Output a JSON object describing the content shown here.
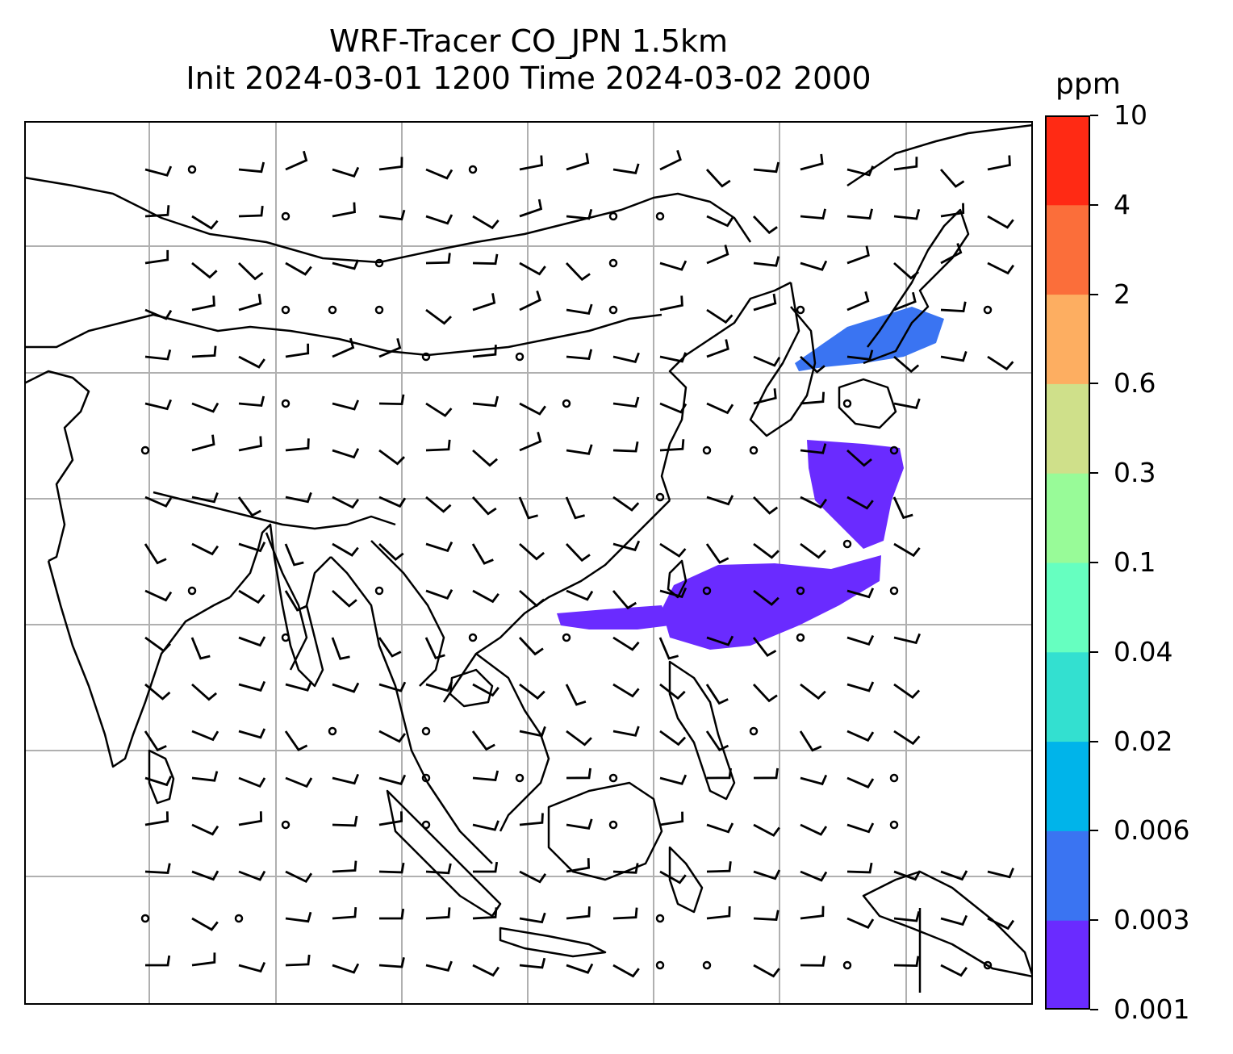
{
  "title": {
    "line1": "WRF-Tracer CO_JPN 1.5km",
    "line2": "Init 2024-03-01 1200 Time 2024-03-02 2000"
  },
  "colorbar": {
    "unit": "ppm",
    "levels": [
      "0.001",
      "0.003",
      "0.006",
      "0.02",
      "0.04",
      "0.1",
      "0.3",
      "0.6",
      "2",
      "4",
      "10"
    ],
    "colors": [
      "#6a2bff",
      "#3a74f2",
      "#00b4ea",
      "#33e0d0",
      "#66ffc0",
      "#98fb98",
      "#cfe08a",
      "#fdae61",
      "#fb6e3a",
      "#ff2a14"
    ]
  },
  "map": {
    "gridlines": true,
    "coastline_color": "#000000",
    "grid_color": "#b0b0b0",
    "plume_color": "#6a2bff",
    "plume_edge_color": "#3a74f2",
    "wind_barbs": true
  }
}
